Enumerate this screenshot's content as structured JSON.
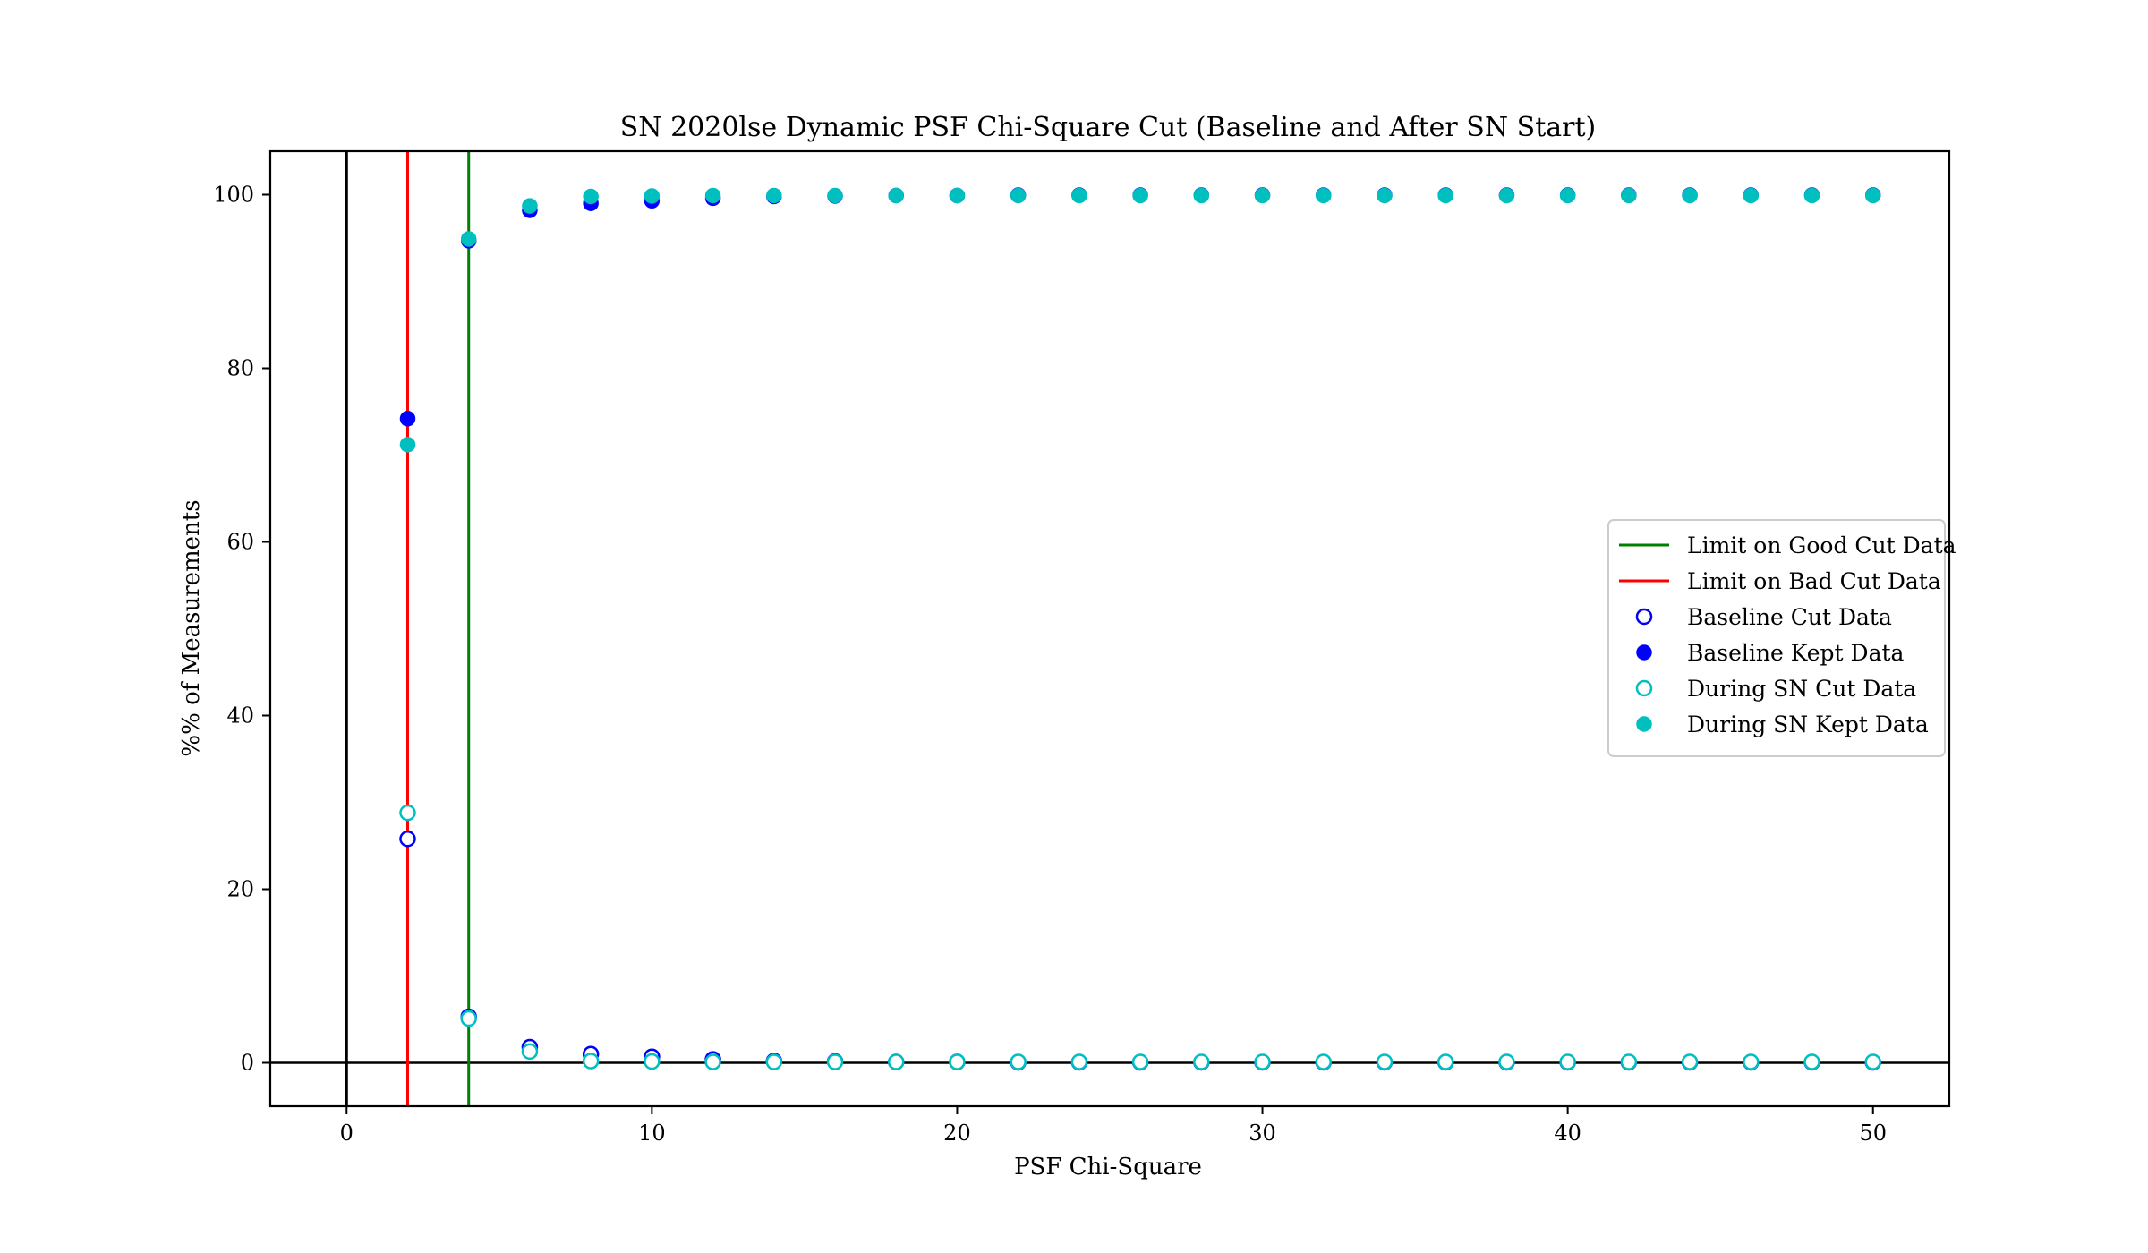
{
  "chart_data": {
    "type": "scatter",
    "title": "SN 2020lse Dynamic PSF Chi-Square Cut (Baseline and After SN Start)",
    "xlabel": "PSF Chi-Square",
    "ylabel": "%% of Measurements",
    "xlim": [
      -2.5,
      52.5
    ],
    "ylim": [
      -5,
      105
    ],
    "xticks": [
      0,
      10,
      20,
      30,
      40,
      50
    ],
    "yticks": [
      0,
      20,
      40,
      60,
      80,
      100
    ],
    "grid": false,
    "legend_position": "center-right",
    "reference_lines": [
      {
        "orientation": "vertical",
        "value": 0,
        "color": "#000000",
        "legend": false
      },
      {
        "orientation": "horizontal",
        "value": 0,
        "color": "#000000",
        "legend": false
      },
      {
        "orientation": "vertical",
        "value": 4,
        "name": "Limit on Good Cut Data",
        "color": "#008000",
        "legend": true
      },
      {
        "orientation": "vertical",
        "value": 2,
        "name": "Limit on Bad Cut Data",
        "color": "#ff0000",
        "legend": true
      }
    ],
    "x": [
      2,
      4,
      6,
      8,
      10,
      12,
      14,
      16,
      18,
      20,
      22,
      24,
      26,
      28,
      30,
      32,
      34,
      36,
      38,
      40,
      42,
      44,
      46,
      48,
      50
    ],
    "series": [
      {
        "name": "Baseline Cut Data",
        "color": "#0000ff",
        "marker": "open-circle",
        "values": [
          25.8,
          5.3,
          1.8,
          1.0,
          0.7,
          0.4,
          0.2,
          0.15,
          0.1,
          0.1,
          0.05,
          0.05,
          0.05,
          0.05,
          0.05,
          0.05,
          0.05,
          0.05,
          0.05,
          0.05,
          0.05,
          0.05,
          0.05,
          0.05,
          0.05
        ]
      },
      {
        "name": "Baseline Kept Data",
        "color": "#0000ff",
        "marker": "filled-circle",
        "values": [
          74.2,
          94.7,
          98.2,
          99.0,
          99.3,
          99.6,
          99.8,
          99.85,
          99.9,
          99.9,
          99.95,
          99.95,
          99.95,
          99.95,
          99.95,
          99.95,
          99.95,
          99.95,
          99.95,
          99.95,
          99.95,
          99.95,
          99.95,
          99.95,
          99.95
        ]
      },
      {
        "name": "During SN Cut Data",
        "color": "#00bfbf",
        "marker": "open-circle",
        "values": [
          28.8,
          5.1,
          1.3,
          0.2,
          0.15,
          0.1,
          0.1,
          0.1,
          0.1,
          0.1,
          0.1,
          0.1,
          0.1,
          0.1,
          0.1,
          0.1,
          0.1,
          0.1,
          0.1,
          0.1,
          0.1,
          0.1,
          0.1,
          0.1,
          0.1
        ]
      },
      {
        "name": "During SN Kept Data",
        "color": "#00bfbf",
        "marker": "filled-circle",
        "values": [
          71.2,
          94.9,
          98.7,
          99.8,
          99.85,
          99.9,
          99.9,
          99.9,
          99.9,
          99.9,
          99.9,
          99.9,
          99.9,
          99.9,
          99.9,
          99.9,
          99.9,
          99.9,
          99.9,
          99.9,
          99.9,
          99.9,
          99.9,
          99.9,
          99.9
        ]
      }
    ]
  }
}
